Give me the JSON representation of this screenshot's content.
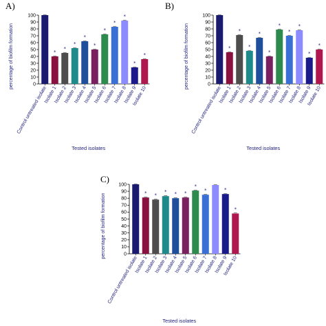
{
  "chart_data": [
    {
      "panel": "A)",
      "type": "bar",
      "categories": [
        "Control untreated isolate",
        "Isolate 1",
        "Isolate 2",
        "Isolate 3",
        "Isolate 4",
        "Isolate 5",
        "Isolate 6",
        "Isolate 7",
        "Isolate 8",
        "Isolate 9",
        "Isolate 10"
      ],
      "values": [
        100,
        40,
        45,
        52,
        62,
        50,
        72,
        83,
        92,
        24,
        36
      ],
      "significance": [
        "",
        "*",
        "*",
        "*",
        "*",
        "*",
        "*",
        "*",
        "*",
        "*",
        "*"
      ],
      "colors": [
        "#1a1a6e",
        "#8a1040",
        "#4d4d4d",
        "#1f8a8a",
        "#1f4f9a",
        "#7a1f5f",
        "#2e8b4e",
        "#3a6fd4",
        "#8c8cff",
        "#1a1a8c",
        "#b0174f"
      ],
      "xlabel": "Tested isolates",
      "ylabel": "percentage of biofilm formation",
      "ylim": [
        0,
        100
      ],
      "yticks": [
        0,
        10,
        20,
        30,
        40,
        50,
        60,
        70,
        80,
        90,
        100
      ]
    },
    {
      "panel": "B)",
      "type": "bar",
      "categories": [
        "Control untreated isolate",
        "Isolate 1",
        "Isolate 2",
        "Isolate 3",
        "Isolate 4",
        "Isolate 5",
        "Isolate 6",
        "Isolate 7",
        "Isolate 8",
        "Isolate 9",
        "Isolate 10"
      ],
      "values": [
        100,
        46,
        71,
        48,
        67,
        40,
        79,
        70,
        78,
        38,
        50
      ],
      "significance": [
        "",
        "*",
        "*",
        "*",
        "*",
        "*",
        "*",
        "*",
        "*",
        "*",
        "*"
      ],
      "colors": [
        "#1a1a6e",
        "#8a1040",
        "#4d4d4d",
        "#1f8a8a",
        "#1f4f9a",
        "#7a1f5f",
        "#2e8b4e",
        "#3a6fd4",
        "#8c8cff",
        "#1a1a8c",
        "#b0174f"
      ],
      "xlabel": "Tested isolates",
      "ylabel": "percentage of biofilm formation",
      "ylim": [
        0,
        100
      ],
      "yticks": [
        0,
        10,
        20,
        30,
        40,
        50,
        60,
        70,
        80,
        90,
        100
      ]
    },
    {
      "panel": "C)",
      "type": "bar",
      "categories": [
        "Control untreated isolate",
        "Isolate 1",
        "Isolate 2",
        "Isolate 3",
        "Isolate 4",
        "Isolate 5",
        "Isolate 6",
        "Isolate 7",
        "Isolate 8",
        "Isolate 9",
        "Isolate 10"
      ],
      "values": [
        100,
        81,
        78,
        83,
        80,
        81,
        91,
        85,
        99,
        86,
        58
      ],
      "significance": [
        "",
        "*",
        "*",
        "*",
        "*",
        "*",
        "*",
        "*",
        "",
        "*",
        "*"
      ],
      "colors": [
        "#1a1a6e",
        "#8a1040",
        "#4d4d4d",
        "#1f8a8a",
        "#1f4f9a",
        "#7a1f5f",
        "#2e8b4e",
        "#3a6fd4",
        "#8c8cff",
        "#1a1a8c",
        "#b0174f"
      ],
      "xlabel": "Tested isolates",
      "ylabel": "percentage of biofilm formation",
      "ylim": [
        0,
        100
      ],
      "yticks": [
        0,
        10,
        20,
        30,
        40,
        50,
        60,
        70,
        80,
        90,
        100
      ]
    }
  ]
}
